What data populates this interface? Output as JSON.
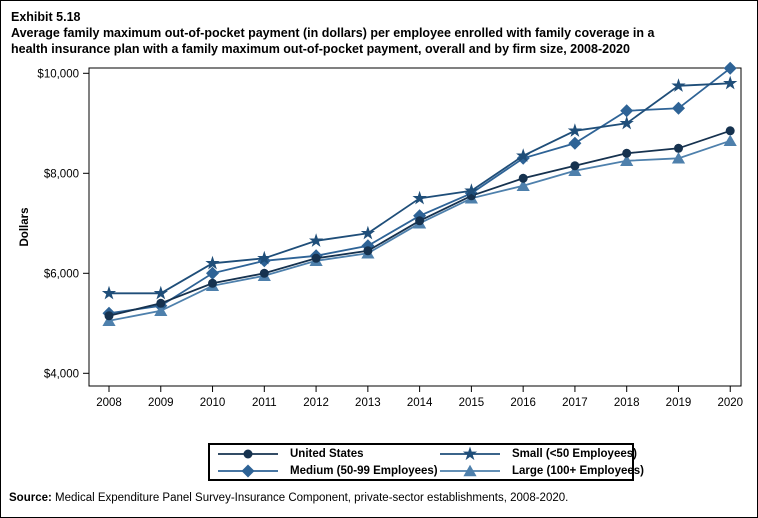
{
  "header": {
    "exhibit": "Exhibit 5.18",
    "title_line1": "Average family maximum out-of-pocket payment (in dollars) per employee enrolled with family coverage in a",
    "title_line2": "health insurance plan with a family maximum out-of-pocket payment, overall and by firm size, 2008-2020"
  },
  "chart_data": {
    "type": "line",
    "x": [
      2008,
      2009,
      2010,
      2011,
      2012,
      2013,
      2014,
      2015,
      2016,
      2017,
      2018,
      2019,
      2020
    ],
    "series": [
      {
        "name": "United States",
        "marker": "circle",
        "color": "#16324F",
        "values": [
          5150,
          5400,
          5800,
          6000,
          6300,
          6450,
          7050,
          7550,
          7900,
          8150,
          8400,
          8500,
          8850
        ]
      },
      {
        "name": "Medium (50-99 Employees)",
        "marker": "diamond",
        "color": "#2E6396",
        "values": [
          5200,
          5350,
          6000,
          6250,
          6350,
          6550,
          7150,
          7600,
          8300,
          8600,
          9250,
          9300,
          10100
        ]
      },
      {
        "name": "Small (<50 Employees)",
        "marker": "star",
        "color": "#1F4E79",
        "values": [
          5600,
          5600,
          6200,
          6300,
          6650,
          6800,
          7500,
          7650,
          8350,
          8850,
          9000,
          9750,
          9800
        ]
      },
      {
        "name": "Large (100+ Employees)",
        "marker": "triangle",
        "color": "#4E80AC",
        "values": [
          5050,
          5250,
          5750,
          5950,
          6250,
          6400,
          7000,
          7500,
          7750,
          8050,
          8250,
          8300,
          8650
        ]
      }
    ],
    "ylabel": "Dollars",
    "yticks": [
      4000,
      6000,
      8000,
      10000
    ],
    "ytick_labels": [
      "$4,000",
      "$6,000",
      "$8,000",
      "$10,000"
    ],
    "ylim": [
      3750,
      10110
    ],
    "grid": false,
    "legend_position": "bottom",
    "legend_display_order": [
      0,
      2,
      1,
      3
    ],
    "draw_order": [
      1,
      3,
      0,
      2
    ]
  },
  "source": {
    "label": "Source:",
    "text": " Medical Expenditure Panel Survey-Insurance Component, private-sector establishments, 2008-2020."
  }
}
